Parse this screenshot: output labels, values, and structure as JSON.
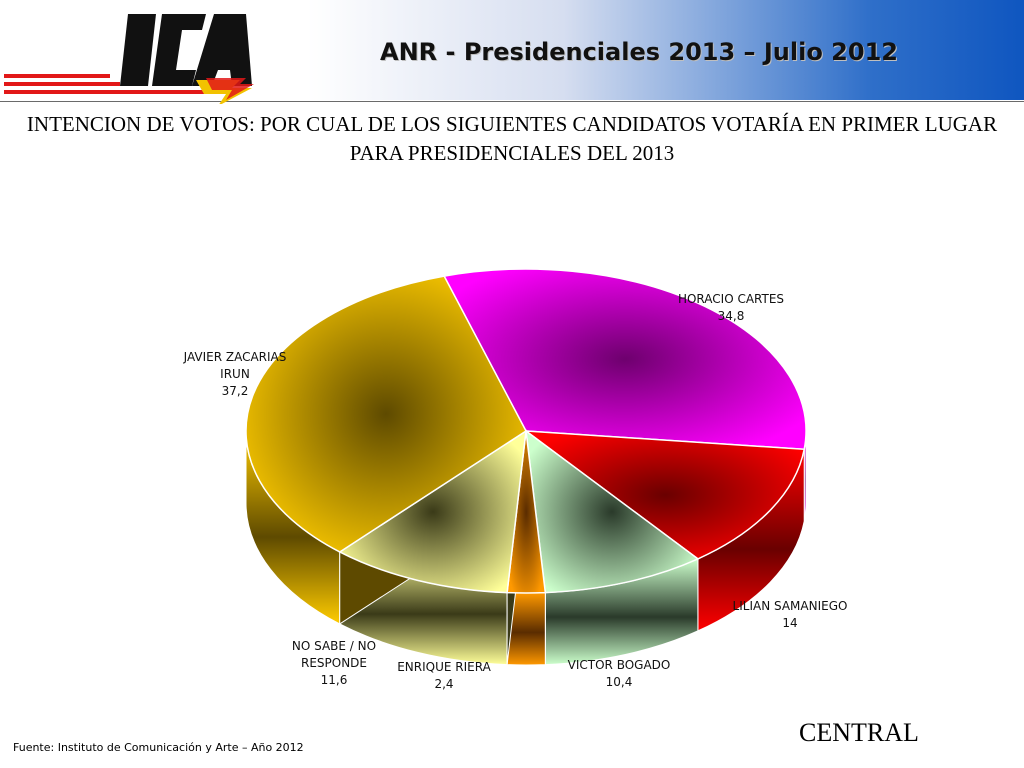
{
  "deck_title": "ANR - Presidenciales 2013 – Julio 2012",
  "question": "INTENCION DE VOTOS: POR CUAL DE LOS SIGUIENTES CANDIDATOS VOTARÍA EN PRIMER LUGAR PARA PRESIDENCIALES DEL 2013",
  "footer": {
    "source": "Fuente: Instituto de Comunicación y Arte – Año 2012",
    "region": "CENTRAL"
  },
  "logo": {
    "text": "ICA"
  },
  "colors": {
    "header_gradient_end": "#0f56c0",
    "logo_red": "#e21818",
    "logo_yellow": "#f2c200"
  },
  "chart_data": {
    "type": "pie",
    "three_d": true,
    "value_labels": [
      "34,8",
      "14",
      "10,4",
      "2,4",
      "11,6",
      "37,2"
    ],
    "slices": [
      {
        "label_lines": [
          "HORACIO CARTES"
        ],
        "value": 34.8,
        "color": "#ff00ff",
        "dark": "#6e006e"
      },
      {
        "label_lines": [
          "LILIAN SAMANIEGO"
        ],
        "value": 14,
        "color": "#ff0000",
        "dark": "#6a0000"
      },
      {
        "label_lines": [
          "VICTOR BOGADO"
        ],
        "value": 10.4,
        "color": "#ccffcc",
        "dark": "#2a3a2a"
      },
      {
        "label_lines": [
          "ENRIQUE RIERA"
        ],
        "value": 2.4,
        "color": "#ff9900",
        "dark": "#5a2c00"
      },
      {
        "label_lines": [
          "NO SABE / NO",
          "RESPONDE"
        ],
        "value": 11.6,
        "color": "#ffff99",
        "dark": "#3a3a18"
      },
      {
        "label_lines": [
          "JAVIER ZACARIAS",
          "IRUN"
        ],
        "value": 37.2,
        "color": "#ffcc00",
        "dark": "#5e4a00"
      }
    ]
  }
}
